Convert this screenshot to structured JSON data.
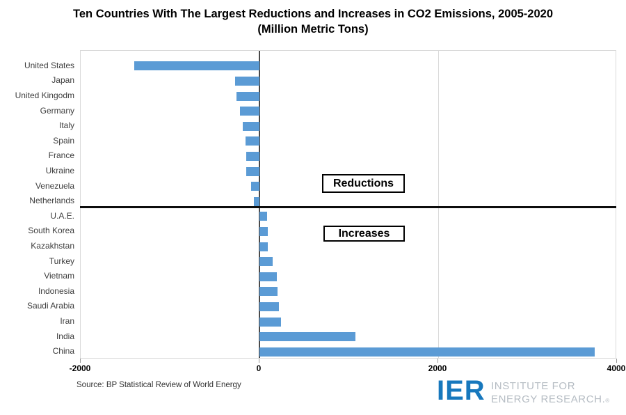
{
  "title": {
    "line1": "Ten Countries With The Largest Reductions and Increases in CO2 Emissions, 2005-2020",
    "line2": "(Million Metric Tons)"
  },
  "chart_data": {
    "type": "bar",
    "orientation": "horizontal",
    "categories": [
      "United States",
      "Japan",
      "United Kingodm",
      "Germany",
      "Italy",
      "Spain",
      "France",
      "Ukraine",
      "Venezuela",
      "Netherlands",
      "U.A.E.",
      "South Korea",
      "Kazakhstan",
      "Turkey",
      "Vietnam",
      "Indonesia",
      "Saudi Arabia",
      "Iran",
      "India",
      "China"
    ],
    "values": [
      -1400,
      -270,
      -260,
      -220,
      -185,
      -155,
      -150,
      -145,
      -90,
      -65,
      85,
      95,
      90,
      145,
      195,
      200,
      220,
      245,
      1075,
      3750
    ],
    "xlim": [
      -2000,
      4000
    ],
    "xticks": [
      -2000,
      0,
      2000,
      4000
    ],
    "xtick_labels": [
      "-2000",
      "0",
      "2000",
      "4000"
    ],
    "bar_color": "#5b9bd5",
    "grid": "light vertical gridlines at ticks",
    "group_divider_after_index": 9
  },
  "annotations": {
    "reductions": "Reductions",
    "increases": "Increases"
  },
  "source": "Source: BP Statistical Review of World Energy",
  "logo": {
    "monogram": "IER",
    "line1": "INSTITUTE FOR",
    "line2": "ENERGY RESEARCH.",
    "registered": "®",
    "blue": "#1778bd",
    "gray": "#b5bcc3"
  }
}
